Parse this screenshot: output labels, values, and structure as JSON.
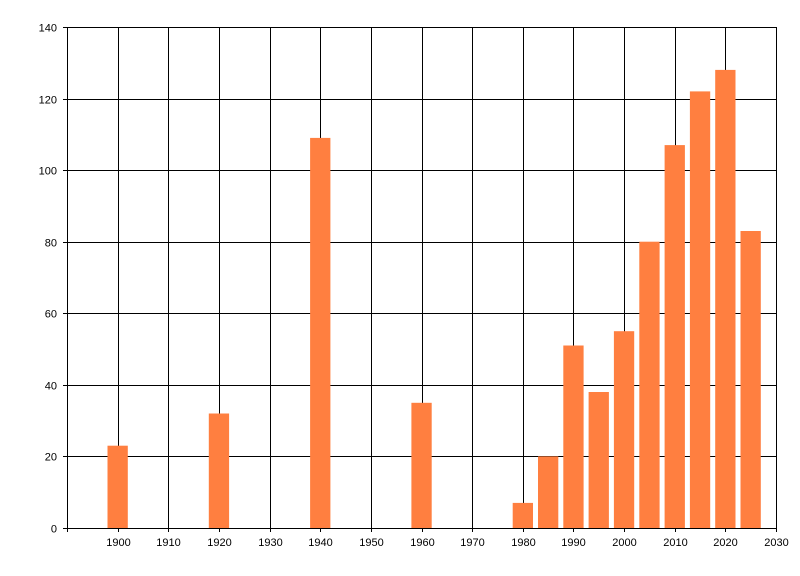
{
  "chart_data": {
    "type": "bar",
    "title": "",
    "xlabel": "",
    "ylabel": "",
    "xlim": [
      1890,
      2030
    ],
    "ylim": [
      0,
      140
    ],
    "grid": true,
    "x_ticks": [
      "1900",
      "1910",
      "1920",
      "1930",
      "1940",
      "1950",
      "1960",
      "1970",
      "1980",
      "1990",
      "2000",
      "2010",
      "2020",
      "2030"
    ],
    "y_ticks": [
      "0",
      "20",
      "40",
      "60",
      "80",
      "100",
      "120",
      "140"
    ],
    "bar_color": "#ff7f40",
    "bar_width_years": 4,
    "bars": [
      {
        "x": 1900,
        "value": 23
      },
      {
        "x": 1920,
        "value": 32
      },
      {
        "x": 1940,
        "value": 109
      },
      {
        "x": 1960,
        "value": 35
      },
      {
        "x": 1980,
        "value": 7
      },
      {
        "x": 1985,
        "value": 20
      },
      {
        "x": 1990,
        "value": 51
      },
      {
        "x": 1995,
        "value": 38
      },
      {
        "x": 2000,
        "value": 55
      },
      {
        "x": 2005,
        "value": 80
      },
      {
        "x": 2010,
        "value": 107
      },
      {
        "x": 2015,
        "value": 122
      },
      {
        "x": 2020,
        "value": 128
      },
      {
        "x": 2025,
        "value": 83
      }
    ]
  }
}
